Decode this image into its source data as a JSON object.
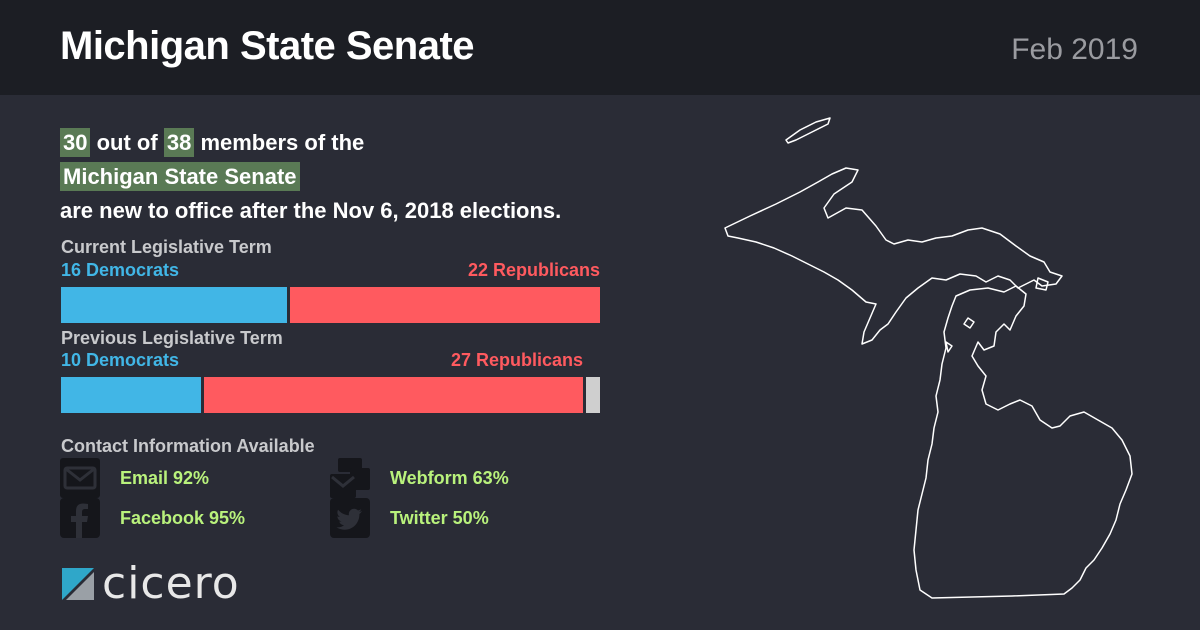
{
  "header": {
    "title": "Michigan State Senate",
    "date": "Feb 2019"
  },
  "headline": {
    "new_count": "30",
    "text_out_of": "out of",
    "total_count": "38",
    "text_members": "members of the",
    "chamber": "Michigan State Senate",
    "text_rest": "are new to office after the Nov 6, 2018 elections."
  },
  "current_term": {
    "label": "Current Legislative Term",
    "dem_label": "16 Democrats",
    "rep_label": "22 Republicans",
    "dem_count": 16,
    "rep_count": 22,
    "other_count": 0,
    "total": 38
  },
  "previous_term": {
    "label": "Previous Legislative Term",
    "dem_label": "10 Democrats",
    "rep_label": "27 Republicans",
    "dem_count": 10,
    "rep_count": 27,
    "other_count": 1,
    "total": 38
  },
  "contact": {
    "title": "Contact Information Available",
    "items": [
      {
        "icon": "email-icon",
        "label": "Email 92%"
      },
      {
        "icon": "webform-icon",
        "label": "Webform 63%"
      },
      {
        "icon": "facebook-icon",
        "label": "Facebook 95%"
      },
      {
        "icon": "twitter-icon",
        "label": "Twitter 50%"
      }
    ]
  },
  "logo": {
    "text": "cicero"
  },
  "colors": {
    "democrat": "#41b6e6",
    "republican": "#ff5a5f",
    "other": "#cfcfcf",
    "highlight": "#5a7a55",
    "contact_text": "#b9f27c"
  }
}
